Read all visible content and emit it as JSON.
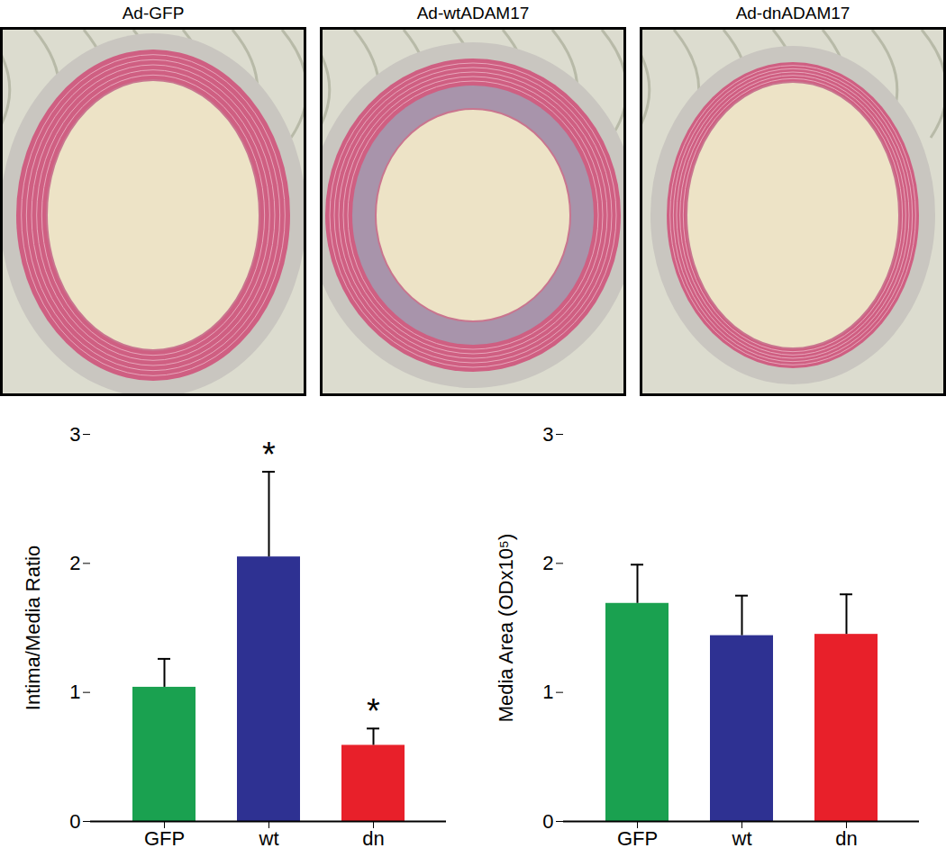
{
  "image_panels": {
    "titles": [
      "Ad-GFP",
      "Ad-wtADAM17",
      "Ad-dnADAM17"
    ]
  },
  "chart_data": [
    {
      "type": "bar",
      "y_label": "Intima/Media Ratio",
      "categories": [
        "GFP",
        "wt",
        "dn"
      ],
      "values": [
        1.04,
        2.05,
        0.59
      ],
      "error": [
        0.22,
        0.66,
        0.13
      ],
      "annotations": [
        null,
        "*",
        "*"
      ],
      "colors": [
        "#1aa150",
        "#2e3192",
        "#e8202a"
      ],
      "ylim": [
        0,
        3
      ],
      "yticks": [
        0,
        1,
        2,
        3
      ]
    },
    {
      "type": "bar",
      "y_label": "Media Area (ODx10⁵)",
      "categories": [
        "GFP",
        "wt",
        "dn"
      ],
      "values": [
        1.69,
        1.44,
        1.45
      ],
      "error": [
        0.3,
        0.31,
        0.31
      ],
      "colors": [
        "#1aa150",
        "#2e3192",
        "#e8202a"
      ],
      "ylim": [
        0,
        3
      ],
      "yticks": [
        0,
        1,
        2,
        3
      ]
    }
  ]
}
